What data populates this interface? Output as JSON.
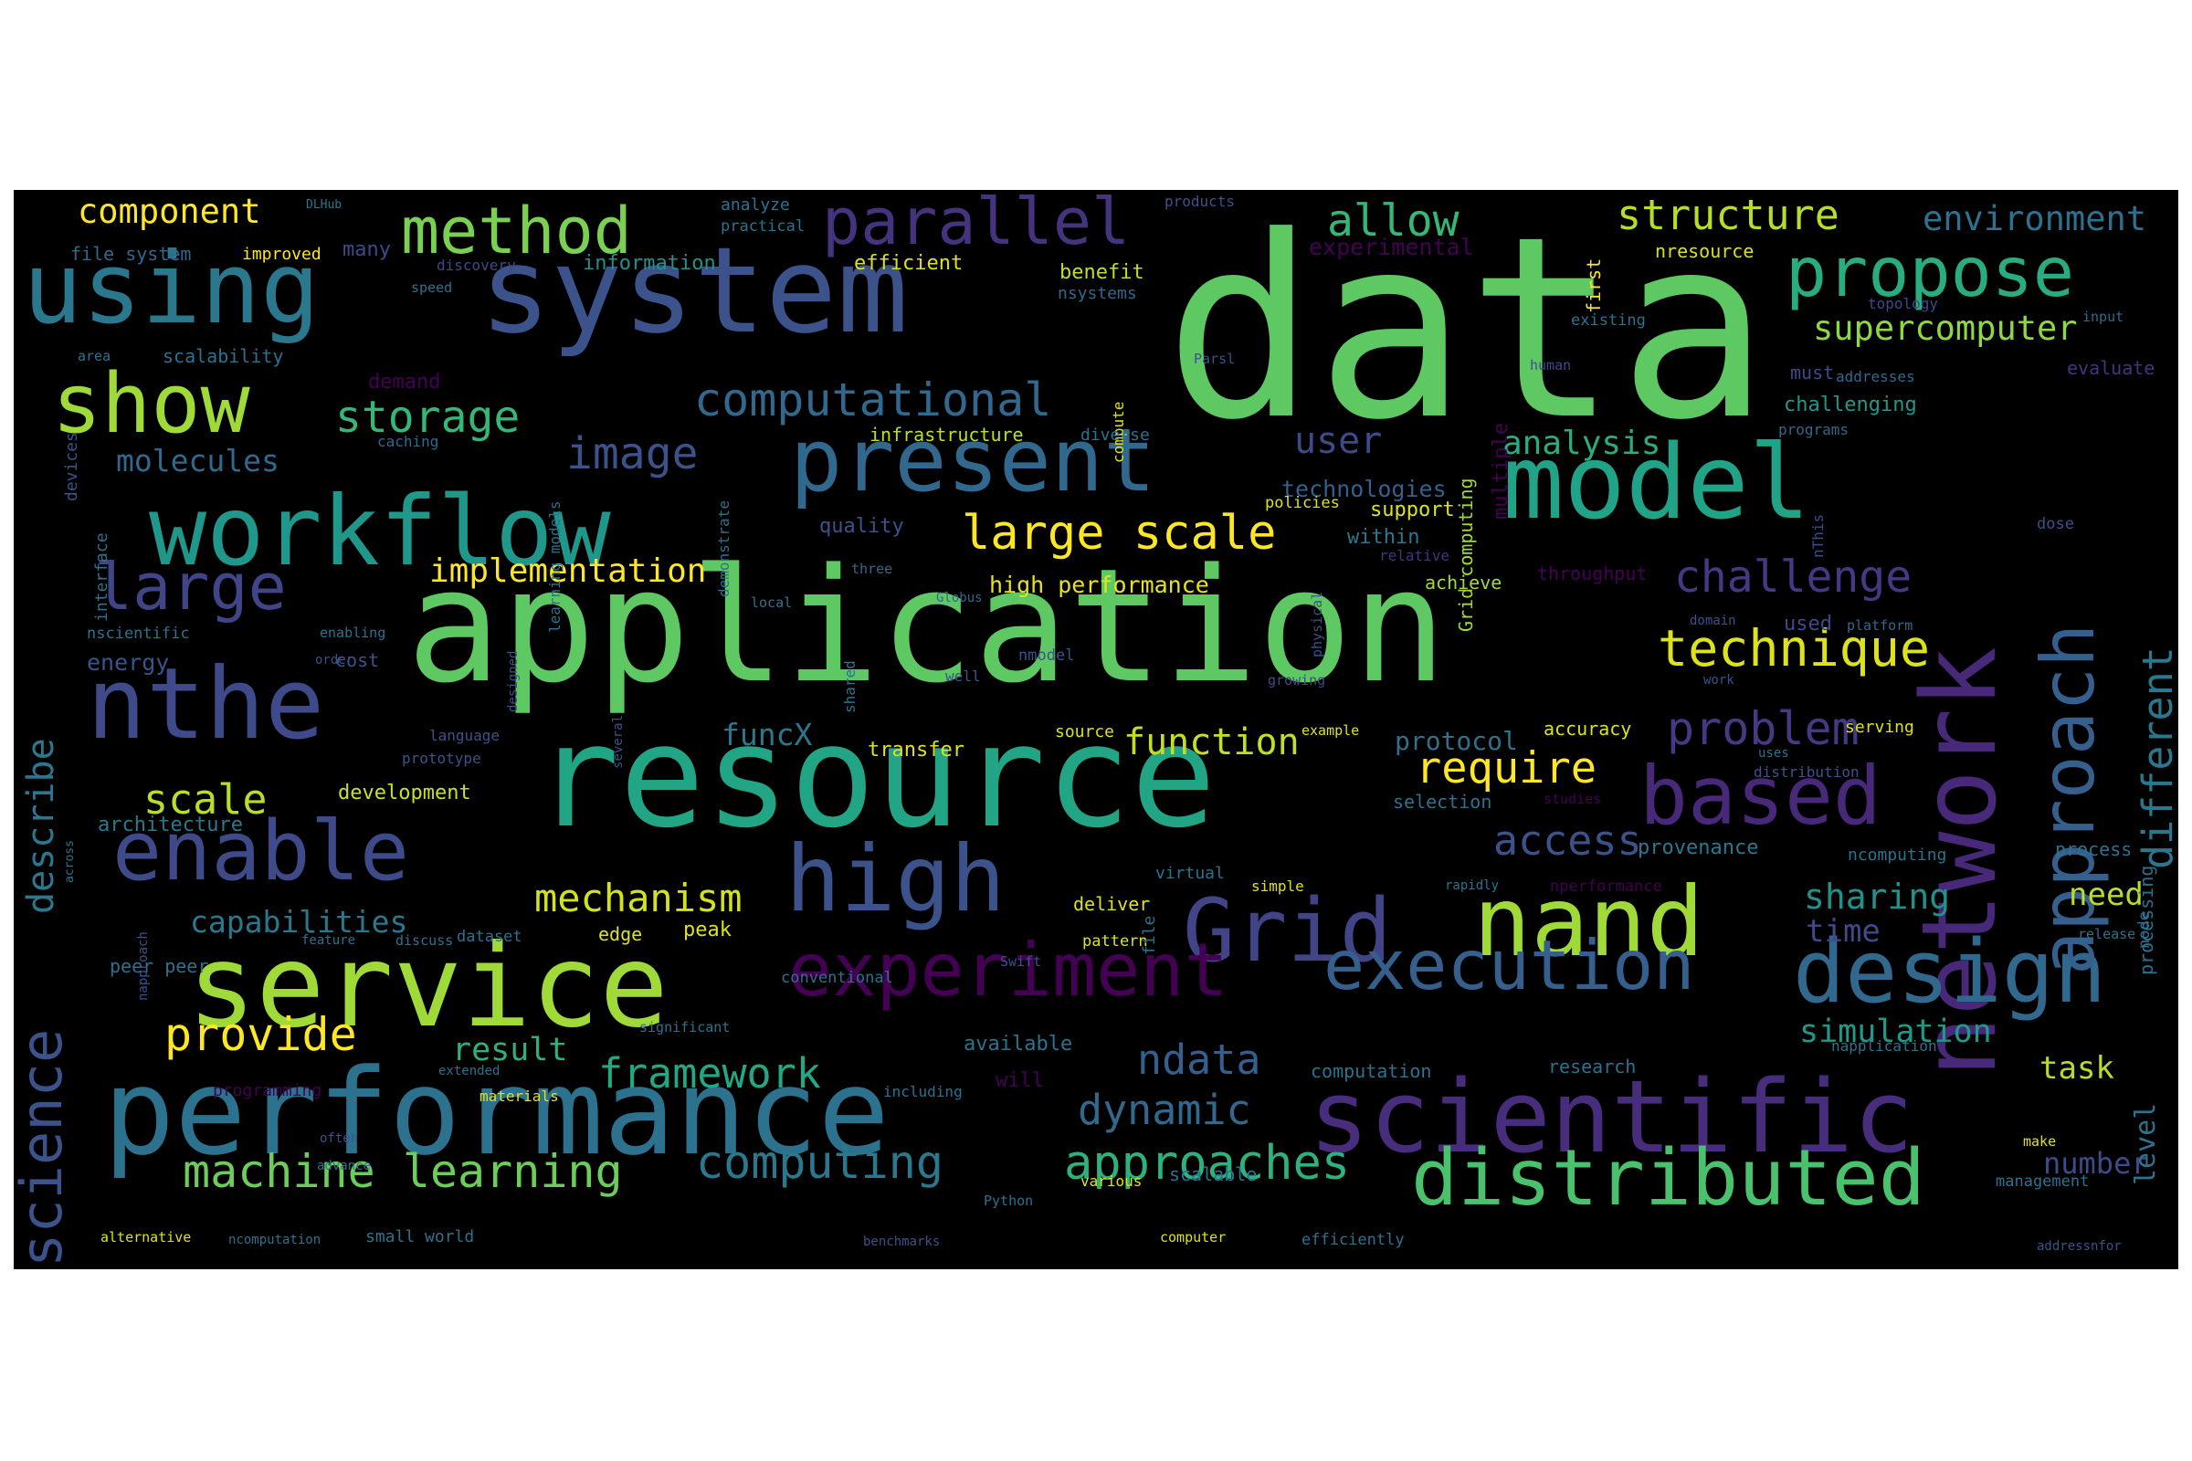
{
  "words": [
    {
      "text": "data",
      "color": "#5ec962"
    },
    {
      "text": "application",
      "color": "#5ec962"
    },
    {
      "text": "resource",
      "color": "#21a585"
    },
    {
      "text": "system",
      "color": "#3b528b"
    },
    {
      "text": "scientific",
      "color": "#472d7b"
    },
    {
      "text": "performance",
      "color": "#2c728e"
    },
    {
      "text": "service",
      "color": "#a0da39"
    },
    {
      "text": "model",
      "color": "#20a386"
    },
    {
      "text": "workflow",
      "color": "#1f988b"
    },
    {
      "text": "network",
      "color": "#482878"
    },
    {
      "text": "nthe",
      "color": "#3e4a89"
    },
    {
      "text": "nand",
      "color": "#a0da39"
    },
    {
      "text": "Grid",
      "color": "#414487"
    },
    {
      "text": "using",
      "color": "#2a788e"
    },
    {
      "text": "high",
      "color": "#3b528b"
    },
    {
      "text": "design",
      "color": "#31688e"
    },
    {
      "text": "distributed",
      "color": "#4ac16d"
    },
    {
      "text": "present",
      "color": "#31688e"
    },
    {
      "text": "based",
      "color": "#482878"
    },
    {
      "text": "enable",
      "color": "#3e4a89"
    },
    {
      "text": "show",
      "color": "#a0da39"
    },
    {
      "text": "approach",
      "color": "#355f8d"
    },
    {
      "text": "experiment",
      "color": "#440154"
    },
    {
      "text": "execution",
      "color": "#355f8d"
    },
    {
      "text": "science",
      "color": "#3b528b"
    },
    {
      "text": "parallel",
      "color": "#46337e"
    },
    {
      "text": "propose",
      "color": "#27ad81"
    },
    {
      "text": "method",
      "color": "#7ad151"
    },
    {
      "text": "large",
      "color": "#414487"
    },
    {
      "text": "computational",
      "color": "#31688e"
    },
    {
      "text": "storage",
      "color": "#35b779"
    },
    {
      "text": "image",
      "color": "#3b528b"
    },
    {
      "text": "large scale",
      "color": "#fde725"
    },
    {
      "text": "allow",
      "color": "#35b779"
    },
    {
      "text": "structure",
      "color": "#b5de2b"
    },
    {
      "text": "environment",
      "color": "#2c728e"
    },
    {
      "text": "supercomputer",
      "color": "#8fd744"
    },
    {
      "text": "technique",
      "color": "#dde318"
    },
    {
      "text": "challenge",
      "color": "#443983"
    },
    {
      "text": "different",
      "color": "#2a788e"
    },
    {
      "text": "problem",
      "color": "#443983"
    },
    {
      "text": "require",
      "color": "#fde725"
    },
    {
      "text": "access",
      "color": "#3b528b"
    },
    {
      "text": "mechanism",
      "color": "#d2e21b"
    },
    {
      "text": "framework",
      "color": "#22a884"
    },
    {
      "text": "provide",
      "color": "#fde725"
    },
    {
      "text": "machine learning",
      "color": "#6ccd5a"
    },
    {
      "text": "computing",
      "color": "#2a788e"
    },
    {
      "text": "approaches",
      "color": "#2db27d"
    },
    {
      "text": "dynamic",
      "color": "#31688e"
    },
    {
      "text": "ndata",
      "color": "#355f8d"
    },
    {
      "text": "function",
      "color": "#c2df23"
    },
    {
      "text": "user",
      "color": "#3e4a89"
    },
    {
      "text": "analysis",
      "color": "#27ad81"
    },
    {
      "text": "describe",
      "color": "#2a788e"
    },
    {
      "text": "implementation",
      "color": "#fde725"
    },
    {
      "text": "scale",
      "color": "#b8de29"
    },
    {
      "text": "capabilities",
      "color": "#2a788e"
    },
    {
      "text": "component",
      "color": "#fde725"
    },
    {
      "text": "molecules",
      "color": "#31688e"
    },
    {
      "text": "sharing",
      "color": "#21918c"
    },
    {
      "text": "time",
      "color": "#3e4a89"
    },
    {
      "text": "need",
      "color": "#b8de29"
    },
    {
      "text": "simulation",
      "color": "#1f9a8a"
    },
    {
      "text": "task",
      "color": "#b5de2b"
    },
    {
      "text": "number",
      "color": "#3e4a89"
    },
    {
      "text": "result",
      "color": "#2db27d"
    },
    {
      "text": "funcX",
      "color": "#2a788e"
    },
    {
      "text": "protocol",
      "color": "#2c728e"
    },
    {
      "text": "level",
      "color": "#2c728e"
    },
    {
      "text": "high performance",
      "color": "#e5e419"
    },
    {
      "text": "technologies",
      "color": "#355f8d"
    },
    {
      "text": "provenance",
      "color": "#2a788e"
    },
    {
      "text": "energy",
      "color": "#3b528b"
    },
    {
      "text": "architecture",
      "color": "#2a788e"
    },
    {
      "text": "development",
      "color": "#cae11f"
    },
    {
      "text": "information",
      "color": "#21918c"
    },
    {
      "text": "efficient",
      "color": "#dde318"
    },
    {
      "text": "benefit",
      "color": "#bddf26"
    },
    {
      "text": "nsystems",
      "color": "#31688e"
    },
    {
      "text": "nresource",
      "color": "#d8e219"
    },
    {
      "text": "experimental",
      "color": "#440154"
    },
    {
      "text": "scalability",
      "color": "#2c728e"
    },
    {
      "text": "file system",
      "color": "#31688e"
    },
    {
      "text": "improved",
      "color": "#fde725"
    },
    {
      "text": "infrastructure",
      "color": "#bddf26"
    },
    {
      "text": "many",
      "color": "#3e4a89"
    },
    {
      "text": "analyze",
      "color": "#2c728e"
    },
    {
      "text": "practical",
      "color": "#2c728e"
    },
    {
      "text": "discovery",
      "color": "#3e4a89"
    },
    {
      "text": "speed",
      "color": "#2c728e"
    },
    {
      "text": "DLHub",
      "color": "#2a788e"
    },
    {
      "text": "products",
      "color": "#3b528b"
    },
    {
      "text": "first",
      "color": "#fde725"
    },
    {
      "text": "existing",
      "color": "#2c728e"
    },
    {
      "text": "topology",
      "color": "#3e4a89"
    },
    {
      "text": "input",
      "color": "#31688e"
    },
    {
      "text": "evaluate",
      "color": "#46337e"
    },
    {
      "text": "addresses",
      "color": "#31688e"
    },
    {
      "text": "must",
      "color": "#3e4a89"
    },
    {
      "text": "challenging",
      "color": "#1f988b"
    },
    {
      "text": "programs",
      "color": "#31688e"
    },
    {
      "text": "human",
      "color": "#3e4a89"
    },
    {
      "text": "Grid computing",
      "color": "#a0da39"
    },
    {
      "text": "multiple",
      "color": "#440154"
    },
    {
      "text": "Parsl",
      "color": "#3b528b"
    },
    {
      "text": "compute",
      "color": "#dde318"
    },
    {
      "text": "diverse",
      "color": "#2c728e"
    },
    {
      "text": "demand",
      "color": "#440154"
    },
    {
      "text": "caching",
      "color": "#31688e"
    },
    {
      "text": "area",
      "color": "#2c728e"
    },
    {
      "text": "devices",
      "color": "#3b528b"
    },
    {
      "text": "interface",
      "color": "#2c728e"
    },
    {
      "text": "learning models",
      "color": "#2c728e"
    },
    {
      "text": "demonstrate",
      "color": "#2c728e"
    },
    {
      "text": "policies",
      "color": "#dde318"
    },
    {
      "text": "quality",
      "color": "#3b528b"
    },
    {
      "text": "support",
      "color": "#dde318"
    },
    {
      "text": "within",
      "color": "#2a788e"
    },
    {
      "text": "relative",
      "color": "#46337e"
    },
    {
      "text": "nThis",
      "color": "#3e4a89"
    },
    {
      "text": "dose",
      "color": "#3b528b"
    },
    {
      "text": "throughput",
      "color": "#440154"
    },
    {
      "text": "achieve",
      "color": "#a0da39"
    },
    {
      "text": "three",
      "color": "#31688e"
    },
    {
      "text": "local",
      "color": "#2c728e"
    },
    {
      "text": "Globus",
      "color": "#31688e"
    },
    {
      "text": "nscientific",
      "color": "#2c728e"
    },
    {
      "text": "enabling",
      "color": "#2c728e"
    },
    {
      "text": "order",
      "color": "#3b528b"
    },
    {
      "text": "cost",
      "color": "#3b528b"
    },
    {
      "text": "physical",
      "color": "#3b528b"
    },
    {
      "text": "domain",
      "color": "#3b528b"
    },
    {
      "text": "platform",
      "color": "#31688e"
    },
    {
      "text": "used",
      "color": "#3e4a89"
    },
    {
      "text": "well",
      "color": "#3b528b"
    },
    {
      "text": "nmodel",
      "color": "#3b528b"
    },
    {
      "text": "growing",
      "color": "#3e4a89"
    },
    {
      "text": "work",
      "color": "#3b528b"
    },
    {
      "text": "shared",
      "color": "#2c728e"
    },
    {
      "text": "designed",
      "color": "#3b528b"
    },
    {
      "text": "several",
      "color": "#3b528b"
    },
    {
      "text": "language",
      "color": "#3b528b"
    },
    {
      "text": "prototype",
      "color": "#3b528b"
    },
    {
      "text": "accuracy",
      "color": "#dde318"
    },
    {
      "text": "example",
      "color": "#dde318"
    },
    {
      "text": "source",
      "color": "#dde318"
    },
    {
      "text": "transfer",
      "color": "#dde318"
    },
    {
      "text": "serving",
      "color": "#dde318"
    },
    {
      "text": "uses",
      "color": "#2c728e"
    },
    {
      "text": "distribution",
      "color": "#3b528b"
    },
    {
      "text": "processing",
      "color": "#2c728e"
    },
    {
      "text": "studies",
      "color": "#440154"
    },
    {
      "text": "selection",
      "color": "#2c728e"
    },
    {
      "text": "across",
      "color": "#2c728e"
    },
    {
      "text": "process",
      "color": "#2c728e"
    },
    {
      "text": "ncomputing",
      "color": "#2c728e"
    },
    {
      "text": "virtual",
      "color": "#2c728e"
    },
    {
      "text": "simple",
      "color": "#dde318"
    },
    {
      "text": "rapidly",
      "color": "#2c728e"
    },
    {
      "text": "nperformance",
      "color": "#440154"
    },
    {
      "text": "node",
      "color": "#2c728e"
    },
    {
      "text": "release",
      "color": "#2c728e"
    },
    {
      "text": "deliver",
      "color": "#dde318"
    },
    {
      "text": "peer peer",
      "color": "#2c728e"
    },
    {
      "text": "napproach",
      "color": "#3b528b"
    },
    {
      "text": "dataset",
      "color": "#2c728e"
    },
    {
      "text": "feature",
      "color": "#2c728e"
    },
    {
      "text": "discuss",
      "color": "#2c728e"
    },
    {
      "text": "edge",
      "color": "#dde318"
    },
    {
      "text": "peak",
      "color": "#dde318"
    },
    {
      "text": "pattern",
      "color": "#dde318"
    },
    {
      "text": "file",
      "color": "#2c728e"
    },
    {
      "text": "Swift",
      "color": "#3b528b"
    },
    {
      "text": "conventional",
      "color": "#2c728e"
    },
    {
      "text": "significant",
      "color": "#2c728e"
    },
    {
      "text": "available",
      "color": "#2c728e"
    },
    {
      "text": "computation",
      "color": "#2c728e"
    },
    {
      "text": "research",
      "color": "#2c728e"
    },
    {
      "text": "napplication",
      "color": "#2c728e"
    },
    {
      "text": "extended",
      "color": "#2c728e"
    },
    {
      "text": "programming",
      "color": "#440154"
    },
    {
      "text": "including",
      "color": "#2c728e"
    },
    {
      "text": "will",
      "color": "#440154"
    },
    {
      "text": "materials",
      "color": "#dde318"
    },
    {
      "text": "often",
      "color": "#3b528b"
    },
    {
      "text": "advance",
      "color": "#2c728e"
    },
    {
      "text": "various",
      "color": "#dde318"
    },
    {
      "text": "scalable",
      "color": "#2c728e"
    },
    {
      "text": "Python",
      "color": "#2c728e"
    },
    {
      "text": "make",
      "color": "#dde318"
    },
    {
      "text": "management",
      "color": "#2c728e"
    },
    {
      "text": "alternative",
      "color": "#dde318"
    },
    {
      "text": "ncomputation",
      "color": "#2c728e"
    },
    {
      "text": "small world",
      "color": "#2c728e"
    },
    {
      "text": "benchmarks",
      "color": "#3b528b"
    },
    {
      "text": "computer",
      "color": "#dde318"
    },
    {
      "text": "efficiently",
      "color": "#2c728e"
    },
    {
      "text": "addressnfor",
      "color": "#3b528b"
    }
  ]
}
